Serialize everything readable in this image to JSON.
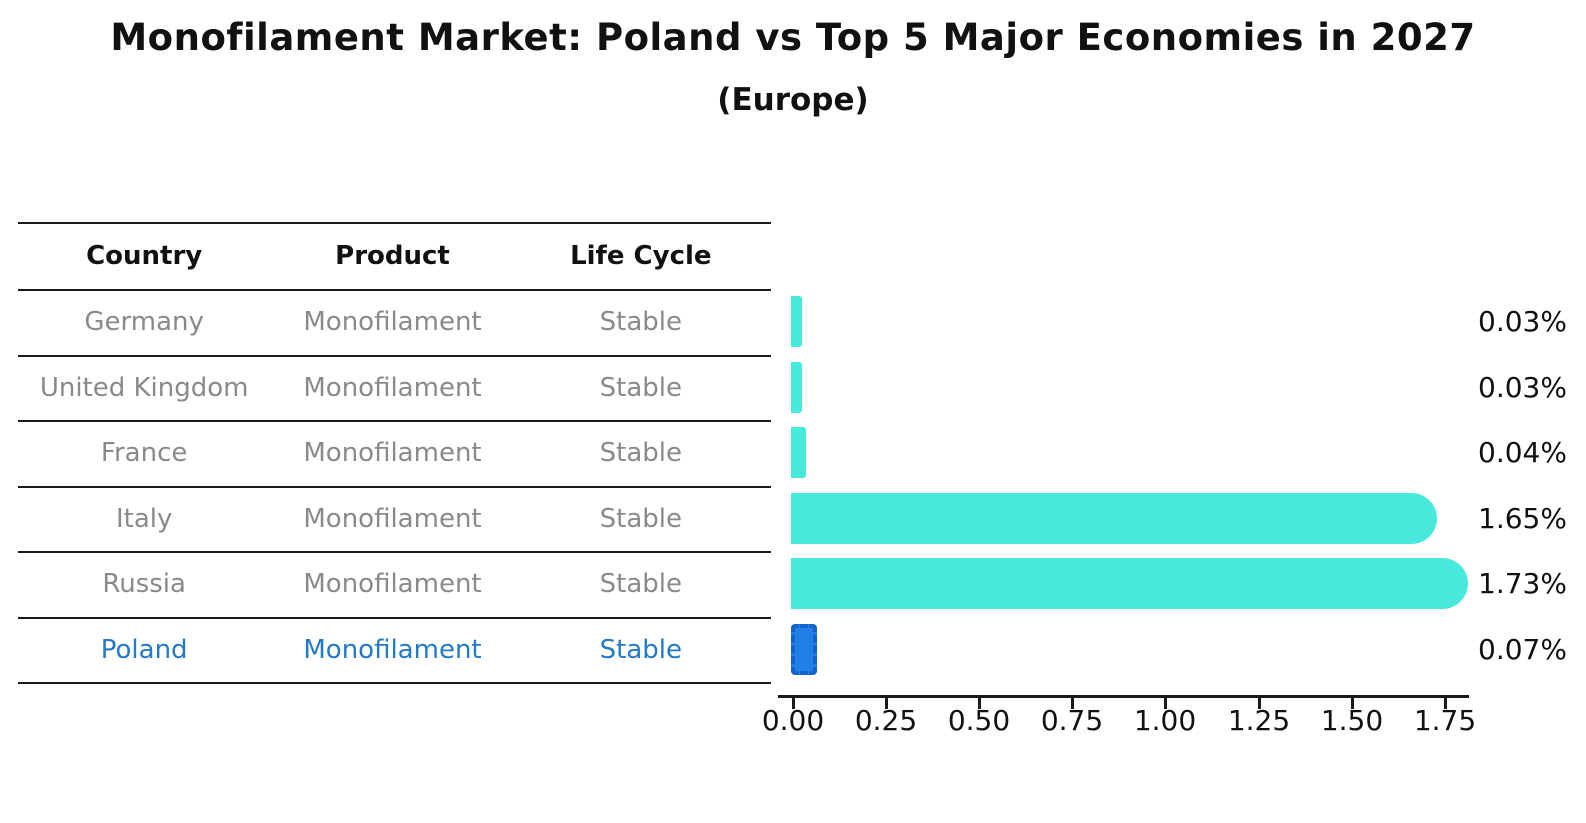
{
  "title": "Monofilament Market: Poland vs Top 5 Major Economies in 2027",
  "subtitle": "(Europe)",
  "table": {
    "headers": [
      "Country",
      "Product",
      "Life Cycle"
    ],
    "rows": [
      {
        "country": "Germany",
        "product": "Monofilament",
        "life_cycle": "Stable"
      },
      {
        "country": "United Kingdom",
        "product": "Monofilament",
        "life_cycle": "Stable"
      },
      {
        "country": "France",
        "product": "Monofilament",
        "life_cycle": "Stable"
      },
      {
        "country": "Italy",
        "product": "Monofilament",
        "life_cycle": "Stable"
      },
      {
        "country": "Russia",
        "product": "Monofilament",
        "life_cycle": "Stable"
      },
      {
        "country": "Poland",
        "product": "Monofilament",
        "life_cycle": "Stable"
      }
    ],
    "highlighted_country": "Poland"
  },
  "chart_data": {
    "type": "bar",
    "orientation": "horizontal",
    "title": "Monofilament Market: Poland vs Top 5 Major Economies in 2027",
    "subtitle": "(Europe)",
    "categories": [
      "Germany",
      "United Kingdom",
      "France",
      "Italy",
      "Russia",
      "Poland"
    ],
    "values": [
      0.03,
      0.03,
      0.04,
      1.65,
      1.73,
      0.07
    ],
    "value_labels": [
      "0.03%",
      "0.03%",
      "0.04%",
      "1.65%",
      "1.73%",
      "0.07%"
    ],
    "x_tick_labels": [
      "0.00",
      "0.25",
      "0.50",
      "0.75",
      "1.00",
      "1.25",
      "1.50",
      "1.75"
    ],
    "xlim": [
      0,
      1.8
    ],
    "unit": "%",
    "grid": false,
    "legend": "none",
    "bar_color": "#48E8DC",
    "highlight_index": 5,
    "highlight_bar_color": "#2080E8",
    "highlight_bar_border": "#1363CC",
    "axis_color": "#1a1a1a"
  },
  "colors": {
    "text_dark": "#111111",
    "text_muted": "#8A8A8A",
    "highlight_text": "#2479C8"
  }
}
